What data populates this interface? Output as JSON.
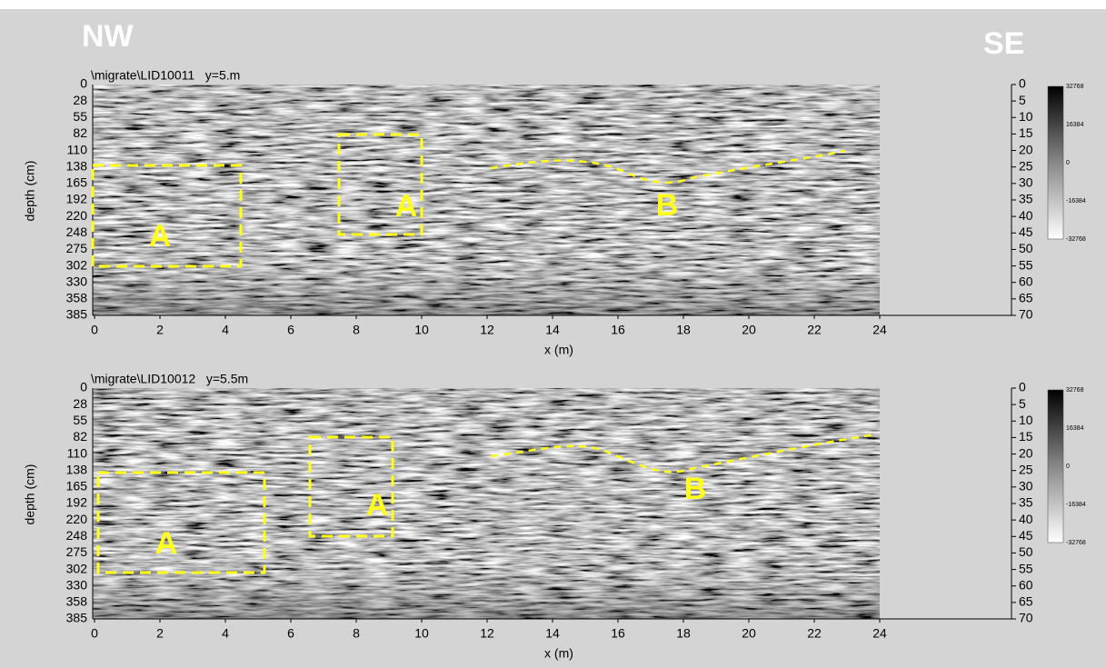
{
  "labels": {
    "nw": "NW",
    "se": "SE"
  },
  "panels": [
    {
      "title": "\\migrate\\LID10011   y=5.m",
      "y_label": "depth (cm)",
      "x_label": "x (m)",
      "depth_ticks": [
        0,
        28,
        55,
        82,
        110,
        138,
        165,
        192,
        220,
        248,
        275,
        302,
        330,
        358,
        385
      ],
      "right_ticks": [
        0,
        5,
        10,
        15,
        20,
        25,
        30,
        35,
        40,
        45,
        50,
        55,
        60,
        65,
        70
      ],
      "x_ticks": [
        0,
        2,
        4,
        6,
        8,
        10,
        12,
        14,
        16,
        18,
        20,
        22,
        24
      ],
      "colorbar_ticks": [
        32768,
        16384,
        0,
        -16384,
        -32768
      ],
      "annotations": [
        "A",
        "A",
        "B"
      ]
    },
    {
      "title": "\\migrate\\LID10012   y=5.5m",
      "y_label": "depth (cm)",
      "x_label": "x (m)",
      "depth_ticks": [
        0,
        28,
        55,
        82,
        110,
        138,
        165,
        192,
        220,
        248,
        275,
        302,
        330,
        358,
        385
      ],
      "right_ticks": [
        0,
        5,
        10,
        15,
        20,
        25,
        30,
        35,
        40,
        45,
        50,
        55,
        60,
        65,
        70
      ],
      "x_ticks": [
        0,
        2,
        4,
        6,
        8,
        10,
        12,
        14,
        16,
        18,
        20,
        22,
        24
      ],
      "colorbar_ticks": [
        32768,
        16384,
        0,
        -16384,
        -32768
      ],
      "annotations": [
        "A",
        "A",
        "B"
      ]
    }
  ]
}
